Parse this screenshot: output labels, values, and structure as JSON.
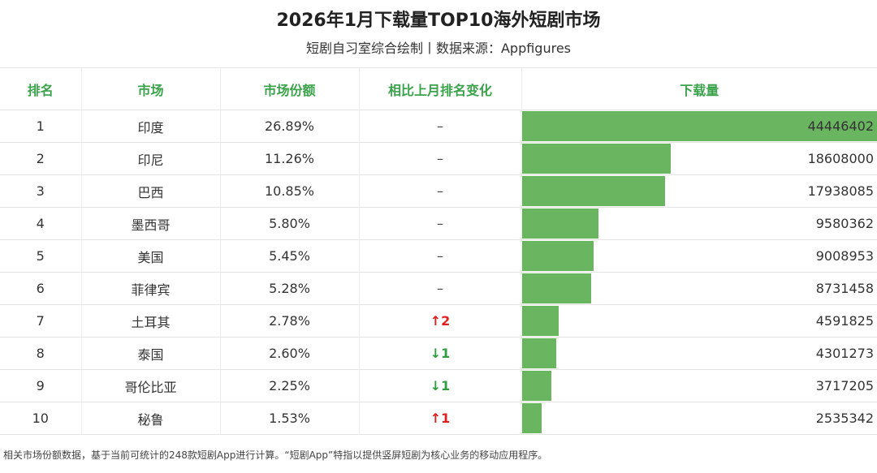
{
  "title": "2026年1月下载量TOP10海外短剧市场",
  "subtitle": "短剧自习室综合绘制丨数据来源：Appfigures",
  "headers": [
    "排名",
    "市场",
    "市场份额",
    "相比上月排名变化",
    "下载量"
  ],
  "colors": {
    "header_text": "#3aa24a",
    "bar": "#6ab55f",
    "up": "#e02020",
    "down": "#2e9e3e"
  },
  "chart_data": {
    "type": "table",
    "columns": [
      "排名",
      "市场",
      "市场份额",
      "相比上月排名变化",
      "下载量"
    ],
    "rows": [
      {
        "rank": "1",
        "market": "印度",
        "share": "26.89%",
        "change": "–",
        "dir": "flat",
        "downloads": 44446402
      },
      {
        "rank": "2",
        "market": "印尼",
        "share": "11.26%",
        "change": "–",
        "dir": "flat",
        "downloads": 18608000
      },
      {
        "rank": "3",
        "market": "巴西",
        "share": "10.85%",
        "change": "–",
        "dir": "flat",
        "downloads": 17938085
      },
      {
        "rank": "4",
        "market": "墨西哥",
        "share": "5.80%",
        "change": "–",
        "dir": "flat",
        "downloads": 9580362
      },
      {
        "rank": "5",
        "market": "美国",
        "share": "5.45%",
        "change": "–",
        "dir": "flat",
        "downloads": 9008953
      },
      {
        "rank": "6",
        "market": "菲律宾",
        "share": "5.28%",
        "change": "–",
        "dir": "flat",
        "downloads": 8731458
      },
      {
        "rank": "7",
        "market": "土耳其",
        "share": "2.78%",
        "change": "↑2",
        "dir": "up",
        "downloads": 4591825
      },
      {
        "rank": "8",
        "market": "泰国",
        "share": "2.60%",
        "change": "↓1",
        "dir": "down",
        "downloads": 4301273
      },
      {
        "rank": "9",
        "market": "哥伦比亚",
        "share": "2.25%",
        "change": "↓1",
        "dir": "down",
        "downloads": 3717205
      },
      {
        "rank": "10",
        "market": "秘鲁",
        "share": "1.53%",
        "change": "↑1",
        "dir": "up",
        "downloads": 2535342
      }
    ],
    "bar_max": 44446402
  },
  "footnote": "相关市场份额数据，基于当前可统计的248款短剧App进行计算。“短剧App”特指以提供竖屏短剧为核心业务的移动应用程序。"
}
